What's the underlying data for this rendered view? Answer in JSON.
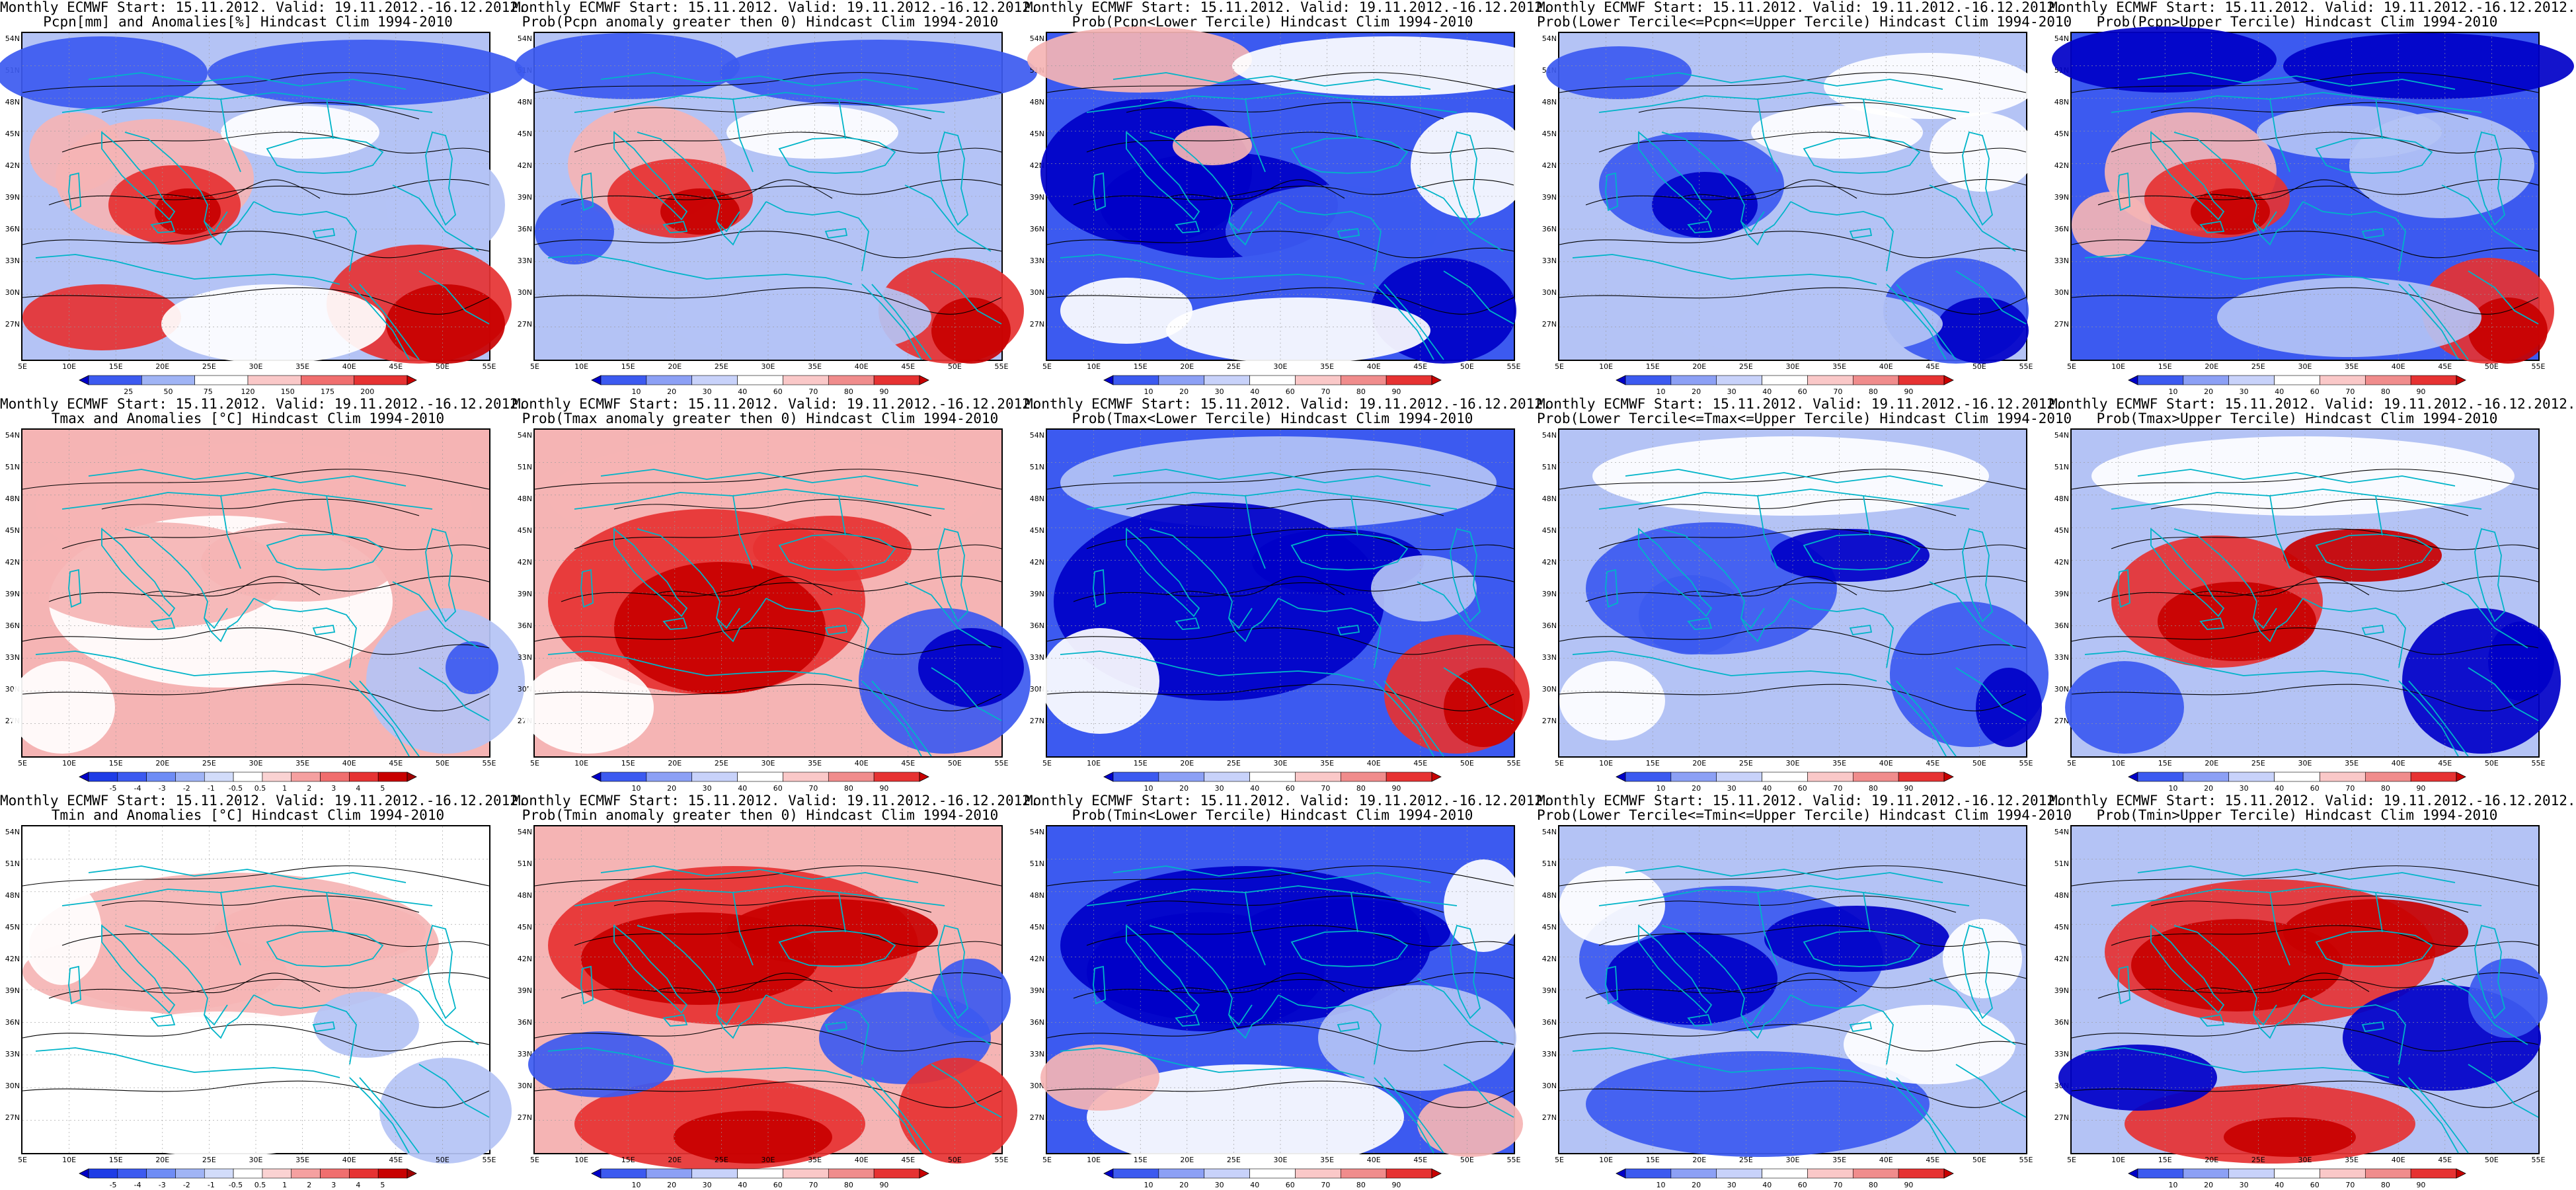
{
  "grid": {
    "lat_labels": [
      "54N",
      "51N",
      "48N",
      "45N",
      "42N",
      "39N",
      "36N",
      "33N",
      "30N",
      "27N"
    ],
    "lon_labels": [
      "5E",
      "10E",
      "15E",
      "20E",
      "25E",
      "30E",
      "35E",
      "40E",
      "45E",
      "50E",
      "55E"
    ]
  },
  "colorbars": {
    "pcpn_anom": [
      "25",
      "50",
      "75",
      "120",
      "150",
      "175",
      "200"
    ],
    "prob": [
      "10",
      "20",
      "30",
      "40",
      "60",
      "70",
      "80",
      "90"
    ],
    "temp_anom": [
      "-5",
      "-4",
      "-3",
      "-2",
      "-1",
      "-0.5",
      "0.5",
      "1",
      "2",
      "3",
      "4",
      "5"
    ]
  },
  "colors": {
    "blue_dark": "#0000c8",
    "blue_mid": "#3c5af0",
    "blue_light": "#b4c3f5",
    "white": "#ffffff",
    "red_light": "#f5b4b4",
    "red_mid": "#e63232",
    "red_dark": "#c80000",
    "coastline": "#00b4c8",
    "contour": "#000000"
  },
  "panels": [
    {
      "t1": "Monthly ECMWF Start: 15.11.2012. Valid: 19.11.2012.-16.12.2012.",
      "t2": "Pcpn[mm] and Anomalies[%] Hindcast Clim 1994-2010",
      "cbar": "pcpn_anom",
      "pattern": "pcpn-anomaly"
    },
    {
      "t1": "Monthly ECMWF Start: 15.11.2012. Valid: 19.11.2012.-16.12.2012.",
      "t2": "Prob(Pcpn anomaly greater then 0) Hindcast Clim 1994-2010",
      "cbar": "prob",
      "pattern": "pcpn-above"
    },
    {
      "t1": "Monthly ECMWF Start: 15.11.2012. Valid: 19.11.2012.-16.12.2012.",
      "t2": "Prob(Pcpn<Lower Tercile) Hindcast Clim 1994-2010",
      "cbar": "prob",
      "pattern": "pcpn-lower"
    },
    {
      "t1": "Monthly ECMWF Start: 15.11.2012. Valid: 19.11.2012.-16.12.2012.",
      "t2": "Prob(Lower Tercile<=Pcpn<=Upper Tercile) Hindcast Clim 1994-2010",
      "cbar": "prob",
      "pattern": "pcpn-middle"
    },
    {
      "t1": "Monthly ECMWF Start: 15.11.2012. Valid: 19.11.2012.-16.12.2012.",
      "t2": "Prob(Pcpn>Upper Tercile) Hindcast Clim 1994-2010",
      "cbar": "prob",
      "pattern": "pcpn-upper"
    },
    {
      "t1": "Monthly ECMWF Start: 15.11.2012. Valid: 19.11.2012.-16.12.2012.",
      "t2": "Tmax and Anomalies [°C] Hindcast Clim 1994-2010",
      "cbar": "temp_anom",
      "pattern": "tmax-anomaly"
    },
    {
      "t1": "Monthly ECMWF Start: 15.11.2012. Valid: 19.11.2012.-16.12.2012.",
      "t2": "Prob(Tmax anomaly greater then 0) Hindcast Clim 1994-2010",
      "cbar": "prob",
      "pattern": "tmax-above"
    },
    {
      "t1": "Monthly ECMWF Start: 15.11.2012. Valid: 19.11.2012.-16.12.2012.",
      "t2": "Prob(Tmax<Lower Tercile) Hindcast Clim 1994-2010",
      "cbar": "prob",
      "pattern": "tmax-lower"
    },
    {
      "t1": "Monthly ECMWF Start: 15.11.2012. Valid: 19.11.2012.-16.12.2012.",
      "t2": "Prob(Lower Tercile<=Tmax<=Upper Tercile) Hindcast Clim 1994-2010",
      "cbar": "prob",
      "pattern": "tmax-middle"
    },
    {
      "t1": "Monthly ECMWF Start: 15.11.2012. Valid: 19.11.2012.-16.12.2012.",
      "t2": "Prob(Tmax>Upper Tercile) Hindcast Clim 1994-2010",
      "cbar": "prob",
      "pattern": "tmax-upper"
    },
    {
      "t1": "Monthly ECMWF Start: 15.11.2012. Valid: 19.11.2012.-16.12.2012.",
      "t2": "Tmin and Anomalies [°C] Hindcast Clim 1994-2010",
      "cbar": "temp_anom",
      "pattern": "tmin-anomaly"
    },
    {
      "t1": "Monthly ECMWF Start: 15.11.2012. Valid: 19.11.2012.-16.12.2012.",
      "t2": "Prob(Tmin anomaly greater then 0) Hindcast Clim 1994-2010",
      "cbar": "prob",
      "pattern": "tmin-above"
    },
    {
      "t1": "Monthly ECMWF Start: 15.11.2012. Valid: 19.11.2012.-16.12.2012.",
      "t2": "Prob(Tmin<Lower Tercile) Hindcast Clim 1994-2010",
      "cbar": "prob",
      "pattern": "tmin-lower"
    },
    {
      "t1": "Monthly ECMWF Start: 15.11.2012. Valid: 19.11.2012.-16.12.2012.",
      "t2": "Prob(Lower Tercile<=Tmin<=Upper Tercile) Hindcast Clim 1994-2010",
      "cbar": "prob",
      "pattern": "tmin-middle"
    },
    {
      "t1": "Monthly ECMWF Start: 15.11.2012. Valid: 19.11.2012.-16.12.2012.",
      "t2": "Prob(Tmin>Upper Tercile) Hindcast Clim 1994-2010",
      "cbar": "prob",
      "pattern": "tmin-upper"
    }
  ]
}
